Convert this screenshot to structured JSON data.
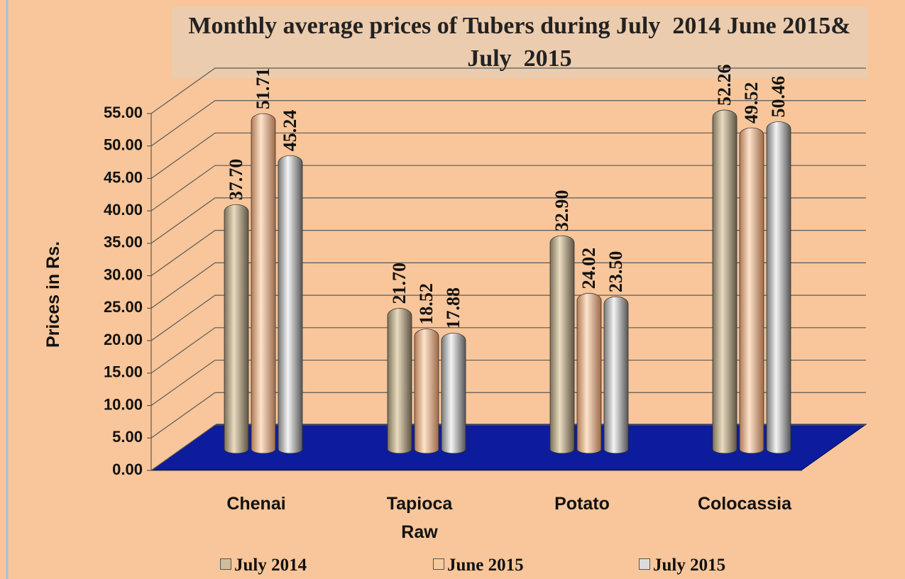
{
  "chart_data": {
    "type": "bar",
    "title": "Monthly average prices of Tubers during July  2014 June 2015& July  2015",
    "ylabel": "Prices in Rs.",
    "categories": [
      "Chenai",
      "Tapioca Raw",
      "Potato",
      "Colocassia"
    ],
    "series": [
      {
        "name": "July 2014",
        "color": "#cdbd9c",
        "values": [
          37.7,
          21.7,
          32.9,
          52.26
        ],
        "value_labels": [
          "37.70",
          "21.70",
          "32.90",
          "52.26"
        ]
      },
      {
        "name": "June 2015",
        "color": "#f9c9a2",
        "values": [
          51.71,
          18.52,
          24.02,
          49.52
        ],
        "value_labels": [
          "51.71",
          "18.52",
          "24.02",
          "49.52"
        ]
      },
      {
        "name": "July 2015",
        "color": "#dcdcdc",
        "values": [
          45.24,
          17.88,
          23.5,
          50.46
        ],
        "value_labels": [
          "45.24",
          "17.88",
          "23.50",
          "50.46"
        ]
      }
    ],
    "ylim": [
      0,
      55
    ],
    "yticks": [
      {
        "value": 0,
        "label": "0.00"
      },
      {
        "value": 5,
        "label": "5.00"
      },
      {
        "value": 10,
        "label": "10.00"
      },
      {
        "value": 15,
        "label": "15.00"
      },
      {
        "value": 20,
        "label": "20.00"
      },
      {
        "value": 25,
        "label": "25.00"
      },
      {
        "value": 30,
        "label": "30.00"
      },
      {
        "value": 35,
        "label": "35.00"
      },
      {
        "value": 40,
        "label": "40.00"
      },
      {
        "value": 45,
        "label": "45.00"
      },
      {
        "value": 50,
        "label": "50.00"
      },
      {
        "value": 55,
        "label": "55.00"
      }
    ],
    "grid": true
  }
}
